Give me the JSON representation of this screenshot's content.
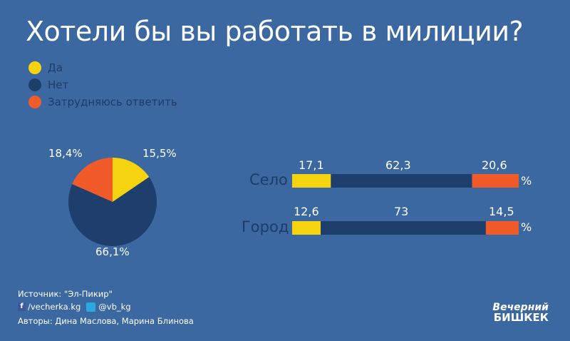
{
  "chart_data": {
    "title": "Хотели бы вы работать в милиции?",
    "legend": [
      {
        "label": "Да",
        "color": "#f5d30f"
      },
      {
        "label": "Нет",
        "color": "#1e3f6b"
      },
      {
        "label": "Затрудняюсь ответить",
        "color": "#f15a29"
      }
    ],
    "pie": {
      "type": "pie",
      "values": [
        15.5,
        66.1,
        18.4
      ],
      "labels": [
        "15,5%",
        "66,1%",
        "18,4%"
      ]
    },
    "bars": {
      "type": "bar",
      "stacked": true,
      "unit": "%",
      "categories": [
        "Село",
        "Город"
      ],
      "series": [
        {
          "name": "Да",
          "values": [
            17.1,
            12.6
          ],
          "labels": [
            "17,1",
            "12,6"
          ]
        },
        {
          "name": "Нет",
          "values": [
            62.3,
            73
          ],
          "labels": [
            "62,3",
            "73"
          ]
        },
        {
          "name": "Затрудняюсь ответить",
          "values": [
            20.6,
            14.5
          ],
          "labels": [
            "20,6",
            "14,5"
          ]
        }
      ]
    }
  },
  "footer": {
    "source": "Источник:  \"Эл-Пикир\"",
    "facebook": "/vecherka.kg",
    "twitter": "@vb_kg",
    "authors": "Авторы: Дина Маслова, Марина Блинова",
    "logo_line1": "Вечерний",
    "logo_line2": "БИШКЕК"
  }
}
